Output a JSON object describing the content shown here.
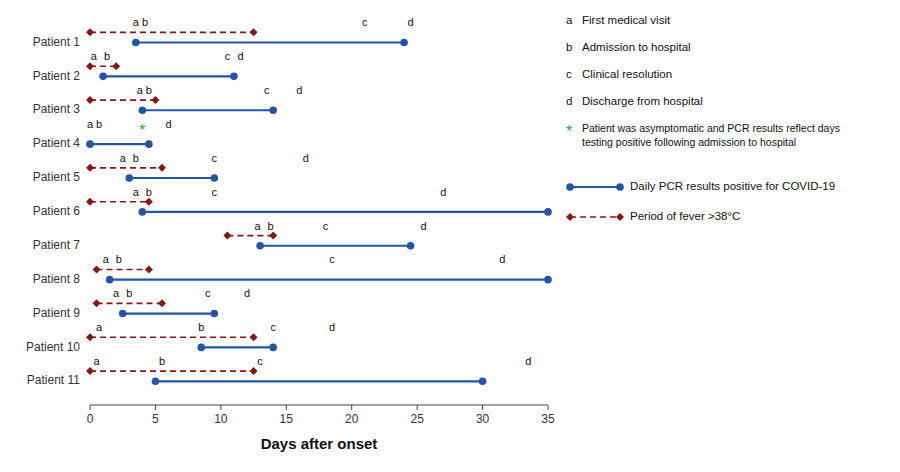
{
  "chart_data": {
    "type": "timeline",
    "x_label": "Days after onset",
    "categories": [
      "Patient 1",
      "Patient 2",
      "Patient 3",
      "Patient 4",
      "Patient 5",
      "Patient 6",
      "Patient 7",
      "Patient 8",
      "Patient 9",
      "Patient 10",
      "Patient 11"
    ],
    "xlim": [
      0,
      35
    ],
    "xticks": [
      0,
      5,
      10,
      15,
      20,
      25,
      30,
      35
    ],
    "series": [
      {
        "name": "Daily PCR results positive for COVID-19",
        "color": "#2255aa",
        "line_style": "solid",
        "marker": "circle",
        "values": [
          [
            3.5,
            24.0
          ],
          [
            1.0,
            11.0
          ],
          [
            4.0,
            14.0
          ],
          [
            0.0,
            4.5
          ],
          [
            3.0,
            9.5
          ],
          [
            4.0,
            35.0
          ],
          [
            13.0,
            24.5
          ],
          [
            1.5,
            35.0
          ],
          [
            2.5,
            9.5
          ],
          [
            8.5,
            14.0
          ],
          [
            5.0,
            30.0
          ]
        ]
      },
      {
        "name": "Period of fever >38°C",
        "color": "#8b1515",
        "line_style": "dashed",
        "marker": "diamond",
        "values": [
          [
            0.0,
            12.5
          ],
          [
            0.0,
            2.0
          ],
          [
            0.0,
            5.0
          ],
          null,
          [
            0.0,
            5.5
          ],
          [
            0.0,
            4.5
          ],
          [
            10.5,
            14.0
          ],
          [
            0.5,
            4.5
          ],
          [
            0.5,
            5.5
          ],
          [
            0.0,
            12.5
          ],
          [
            0.0,
            12.5
          ]
        ]
      }
    ],
    "events": [
      {
        "symbol": "a",
        "name": "First medical visit",
        "x": [
          3.5,
          0.3,
          3.8,
          0.0,
          2.5,
          3.5,
          12.8,
          1.2,
          2.0,
          0.7,
          0.5
        ]
      },
      {
        "symbol": "b",
        "name": "Admission to hospital",
        "x": [
          4.2,
          1.3,
          4.5,
          0.7,
          3.5,
          4.5,
          13.8,
          2.2,
          3.0,
          8.5,
          5.5
        ]
      },
      {
        "symbol": "c",
        "name": "Clinical resolution",
        "x": [
          21.0,
          10.5,
          13.5,
          null,
          9.5,
          9.5,
          18.0,
          18.5,
          9.0,
          14.0,
          13.0
        ]
      },
      {
        "symbol": "d",
        "name": "Discharge from hospital",
        "x": [
          24.5,
          11.5,
          16.0,
          6.0,
          16.5,
          27.0,
          25.5,
          31.5,
          12.0,
          18.5,
          33.5
        ]
      },
      {
        "symbol": "*",
        "name": "Patient was asymptomatic and PCR results reflect days\ntesting positive following admission to hospital",
        "color": "#22aa44",
        "x": [
          null,
          null,
          null,
          4.0,
          null,
          null,
          null,
          null,
          null,
          null,
          null
        ]
      }
    ]
  }
}
